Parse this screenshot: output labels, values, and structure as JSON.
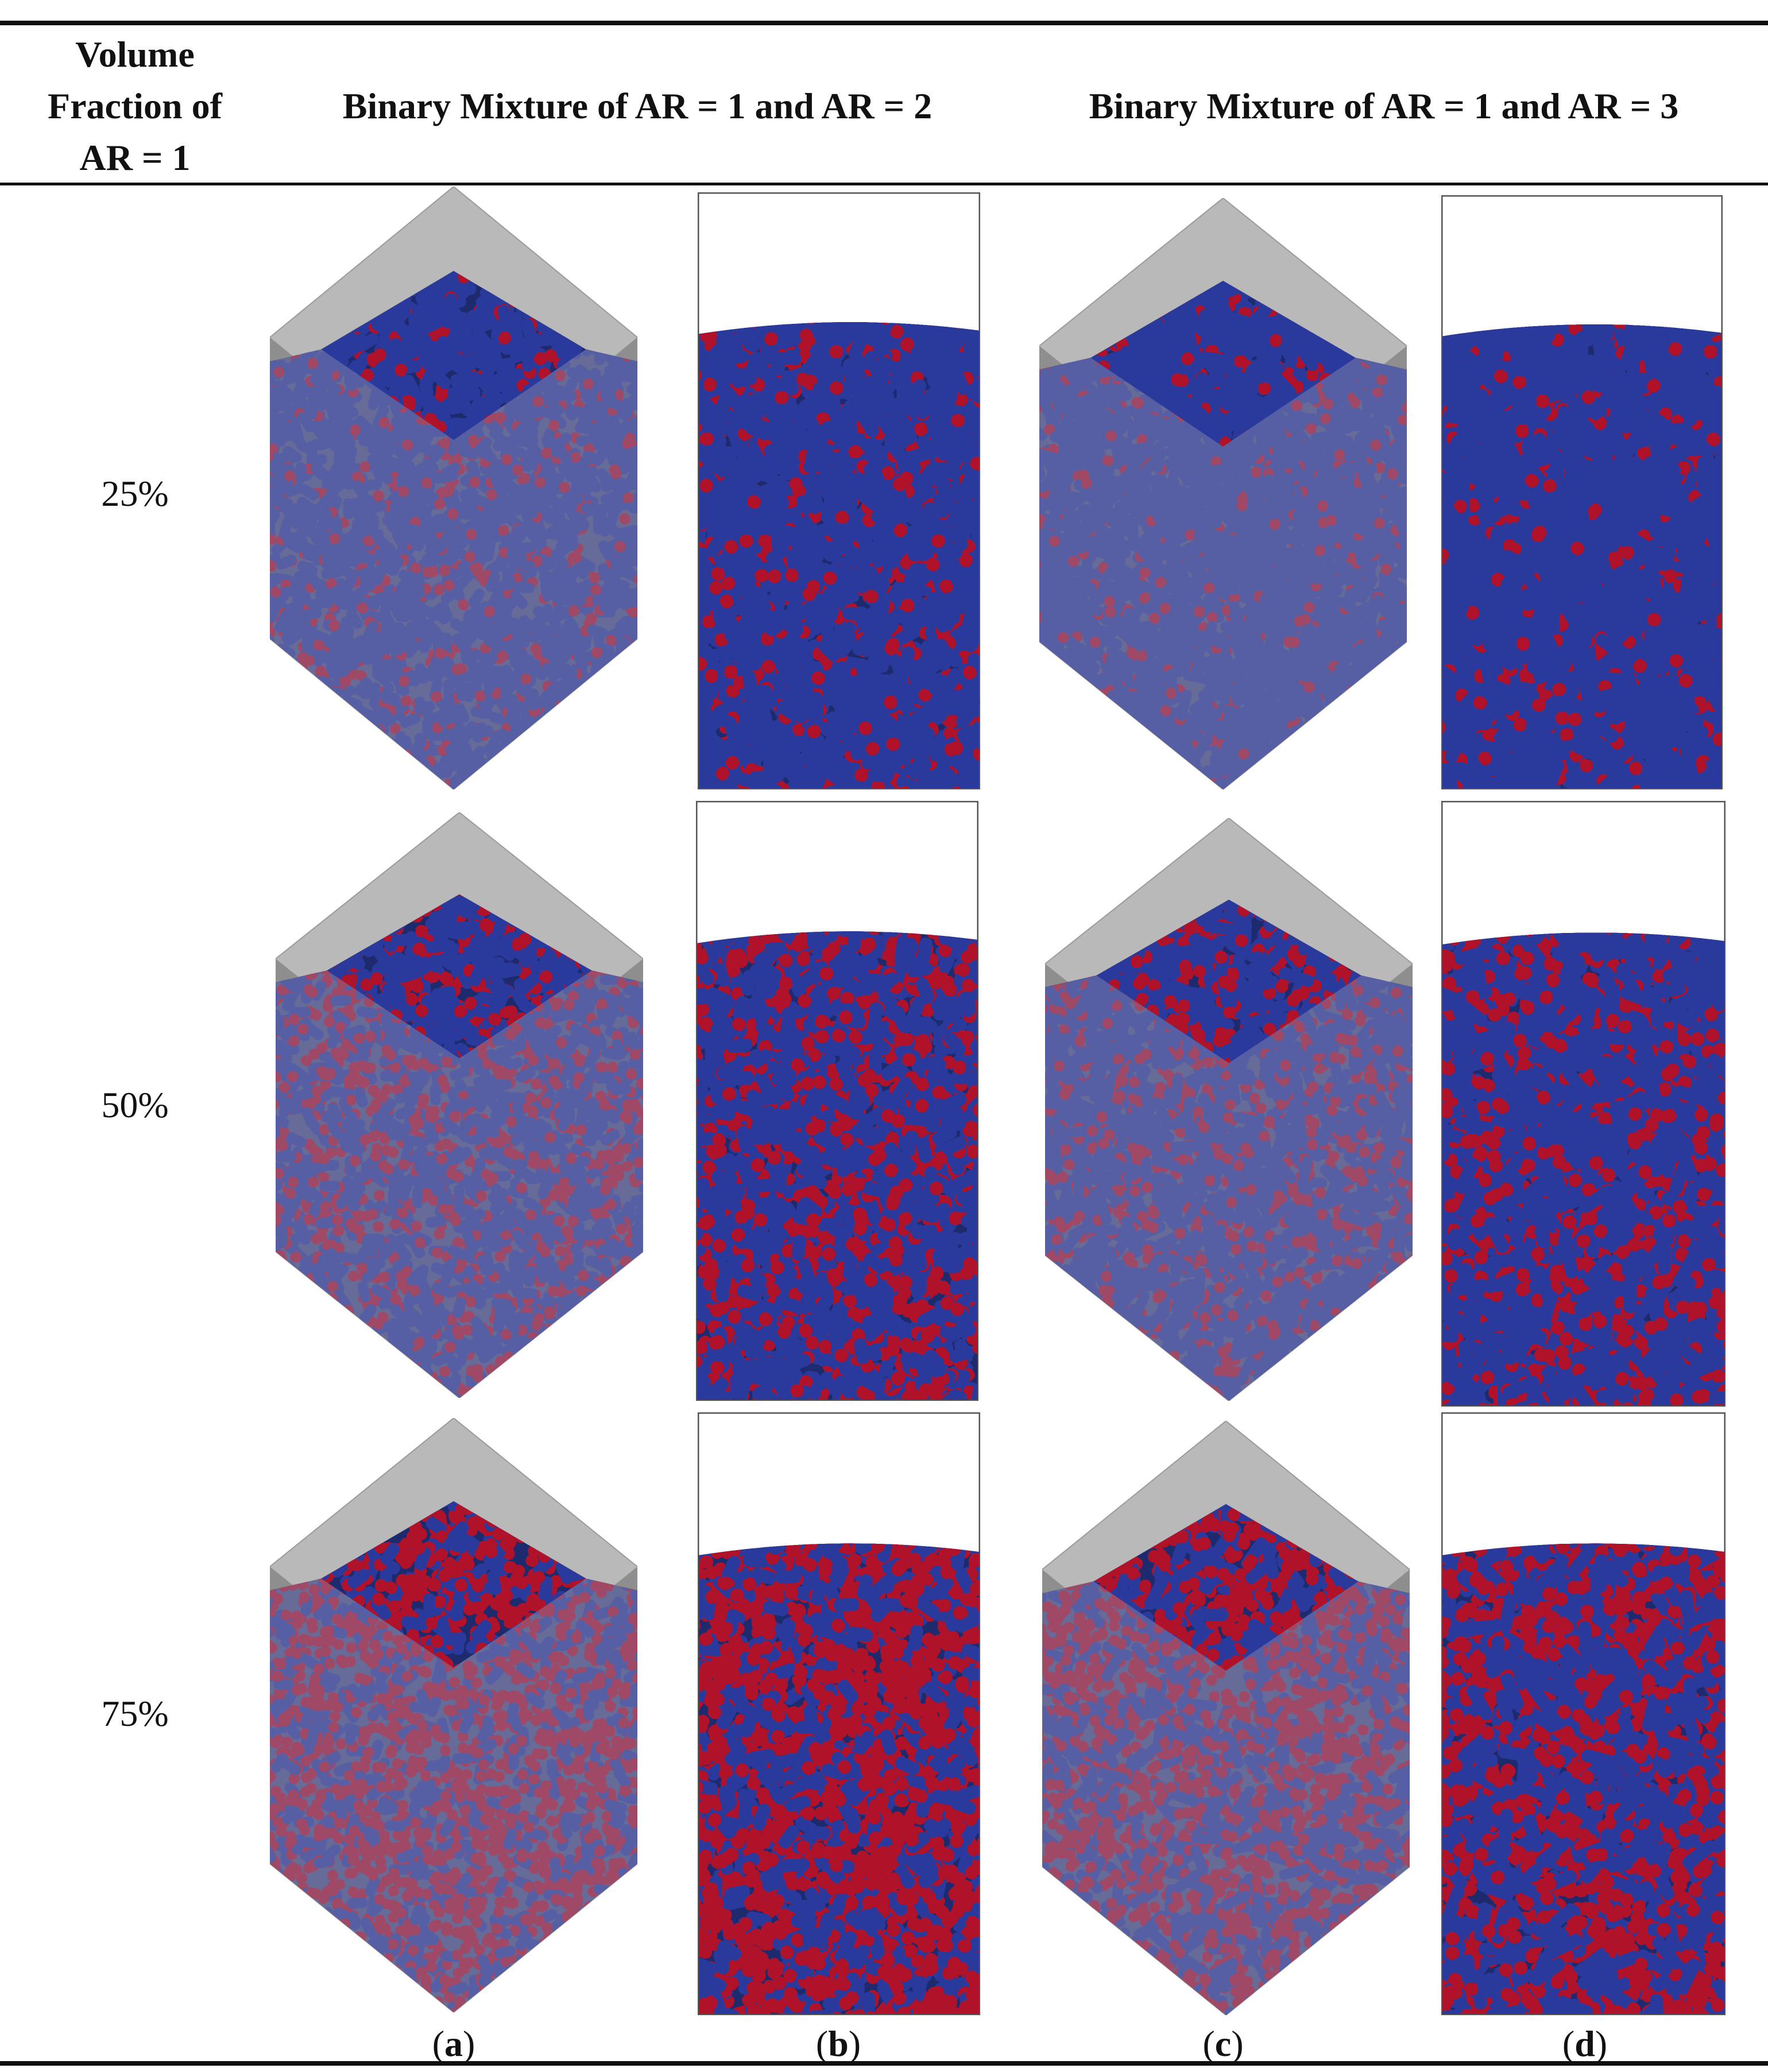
{
  "table": {
    "header": {
      "volume_fraction_lines": [
        "Volume",
        "Fraction of",
        "AR = 1"
      ],
      "col_ab": "Binary Mixture of AR = 1 and AR = 2",
      "col_cd": "Binary Mixture of AR = 1 and AR = 3"
    },
    "rows": [
      {
        "label": "25%",
        "ar1_fraction": 0.25
      },
      {
        "label": "50%",
        "ar1_fraction": 0.5
      },
      {
        "label": "75%",
        "ar1_fraction": 0.75
      }
    ],
    "captions": [
      {
        "open": "(",
        "letter": "a",
        "close": ")"
      },
      {
        "open": "(",
        "letter": "b",
        "close": ")"
      },
      {
        "open": "(",
        "letter": "c",
        "close": ")"
      },
      {
        "open": "(",
        "letter": "d",
        "close": ")"
      }
    ]
  },
  "colors": {
    "red_particle": "#b0122a",
    "blue_particle": "#2a3a9c",
    "container_gray": "#b9b9b9",
    "container_gray_dark": "#8e8e8e",
    "frame": "#555555"
  }
}
